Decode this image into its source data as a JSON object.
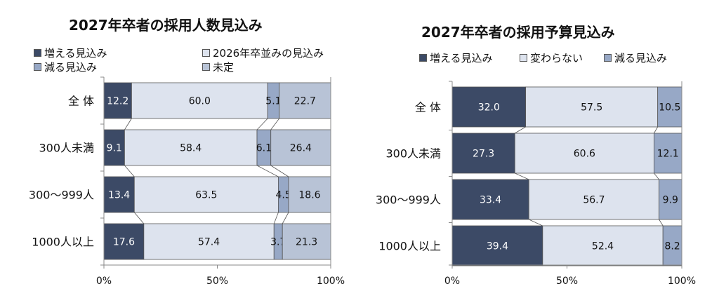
{
  "colors": {
    "increase": "#3c4a66",
    "same": "#dde3ee",
    "decrease": "#97a8c6",
    "undecided": "#b8c3d6",
    "border": "#555555"
  },
  "chart_data": [
    {
      "type": "bar",
      "orientation": "horizontal-stacked-100",
      "title": "2027年卒者の採用人数見込み",
      "categories": [
        "全 体",
        "300人未満",
        "300～999人",
        "1000人以上"
      ],
      "series": [
        {
          "name": "増える見込み",
          "color_key": "increase",
          "values": [
            12.2,
            9.1,
            13.4,
            17.6
          ],
          "labels": [
            "12.2",
            "9.1",
            "13.4",
            "17.6"
          ]
        },
        {
          "name": "2026年卒並みの見込み",
          "color_key": "same",
          "values": [
            60.0,
            58.4,
            63.5,
            57.4
          ],
          "labels": [
            "60.0",
            "58.4",
            "63.5",
            "57.4"
          ]
        },
        {
          "name": "減る見込み",
          "color_key": "decrease",
          "values": [
            5.1,
            6.1,
            4.5,
            3.7
          ],
          "labels": [
            "5.1",
            "6.1",
            "4.5",
            "3.7"
          ]
        },
        {
          "name": "未定",
          "color_key": "undecided",
          "values": [
            22.7,
            26.4,
            18.6,
            21.3
          ],
          "labels": [
            "22.7",
            "26.4",
            "18.6",
            "21.3"
          ]
        }
      ],
      "xticks": [
        "0%",
        "50%",
        "100%"
      ],
      "xlim": [
        0,
        100
      ],
      "grid": false,
      "connector_lines": true
    },
    {
      "type": "bar",
      "orientation": "horizontal-stacked-100",
      "title": "2027年卒者の採用予算見込み",
      "categories": [
        "全 体",
        "300人未満",
        "300～999人",
        "1000人以上"
      ],
      "series": [
        {
          "name": "増える見込み",
          "color_key": "increase",
          "values": [
            32.0,
            27.3,
            33.4,
            39.4
          ],
          "labels": [
            "32.0",
            "27.3",
            "33.4",
            "39.4"
          ]
        },
        {
          "name": "変わらない",
          "color_key": "same",
          "values": [
            57.5,
            60.6,
            56.7,
            52.4
          ],
          "labels": [
            "57.5",
            "60.6",
            "56.7",
            "52.4"
          ]
        },
        {
          "name": "減る見込み",
          "color_key": "decrease",
          "values": [
            10.5,
            12.1,
            9.9,
            8.2
          ],
          "labels": [
            "10.5",
            "12.1",
            "9.9",
            "8.2"
          ]
        }
      ],
      "xticks": [
        "0%",
        "50%",
        "100%"
      ],
      "xlim": [
        0,
        100
      ],
      "grid": false,
      "connector_lines": true
    }
  ]
}
